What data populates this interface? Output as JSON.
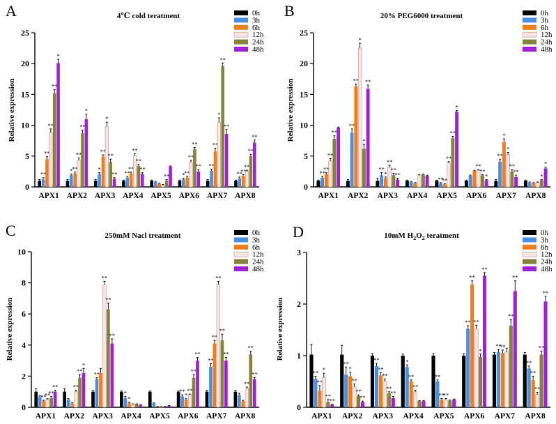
{
  "legend_labels": [
    "0h",
    "3h",
    "6h",
    "12h",
    "24h",
    "48h"
  ],
  "colors": {
    "series": [
      "#000000",
      "#4a90e2",
      "#f07d1a",
      "#fbe3e1",
      "#85823a",
      "#a020d8"
    ],
    "error": "#000000"
  },
  "chart_data": [
    {
      "type": "bar",
      "panel": "A",
      "title": "4℃ cold teratment",
      "ylabel": "Relative expression",
      "ylim": [
        0,
        25
      ],
      "yticks": [
        0,
        5,
        10,
        15,
        20,
        25
      ],
      "categories": [
        "APX1",
        "APX2",
        "APX3",
        "APX4",
        "APX5",
        "APX6",
        "APX7",
        "APX8"
      ],
      "series": [
        {
          "name": "0h",
          "values": [
            1.0,
            1.0,
            1.0,
            1.0,
            1.0,
            1.0,
            1.0,
            1.0
          ],
          "errors": [
            0.2,
            0.2,
            0.2,
            0.1,
            0.1,
            0.1,
            0.2,
            0.1
          ],
          "stars": [
            "",
            "",
            "",
            "",
            "",
            "",
            "",
            ""
          ]
        },
        {
          "name": "3h",
          "values": [
            1.2,
            1.9,
            2.1,
            1.5,
            0.8,
            1.2,
            2.6,
            1.4
          ],
          "errors": [
            0.3,
            0.2,
            0.2,
            0.2,
            0.1,
            0.2,
            0.3,
            0.2
          ],
          "stars": [
            "**",
            "*",
            "*",
            "**",
            "",
            "*",
            "**",
            "**"
          ]
        },
        {
          "name": "6h",
          "values": [
            4.5,
            2.2,
            4.9,
            2.2,
            0.5,
            1.5,
            5.8,
            1.8
          ],
          "errors": [
            0.4,
            0.2,
            0.3,
            0.2,
            0.1,
            0.2,
            0.5,
            0.2
          ],
          "stars": [
            "**",
            "**",
            "**",
            "**",
            "",
            "**",
            "**",
            "**"
          ]
        },
        {
          "name": "12h",
          "values": [
            8.8,
            4.3,
            9.8,
            5.1,
            0.3,
            4.0,
            10.5,
            2.5
          ],
          "errors": [
            0.6,
            0.4,
            0.7,
            0.3,
            0.1,
            0.3,
            0.7,
            0.2
          ],
          "stars": [
            "**",
            "**",
            "*",
            "**",
            "",
            "**",
            "*",
            "**"
          ]
        },
        {
          "name": "24h",
          "values": [
            15.2,
            8.7,
            4.1,
            3.4,
            1.0,
            6.1,
            19.6,
            5.0
          ],
          "errors": [
            0.6,
            0.5,
            0.4,
            0.3,
            0.2,
            0.3,
            0.5,
            0.3
          ],
          "stars": [
            "**",
            "**",
            "**",
            "**",
            "**",
            "**",
            "**",
            "**"
          ]
        },
        {
          "name": "48h",
          "values": [
            20.1,
            11.0,
            1.3,
            2.1,
            3.3,
            2.5,
            8.6,
            7.2
          ],
          "errors": [
            0.6,
            0.8,
            0.2,
            0.2,
            0.1,
            0.3,
            0.7,
            0.4
          ],
          "stars": [
            "*",
            "*",
            "**",
            "**",
            "",
            "**",
            "**",
            "**"
          ]
        }
      ]
    },
    {
      "type": "bar",
      "panel": "B",
      "title": "20% PEG6000 treatment",
      "ylabel": "Relative expression",
      "ylim": [
        0,
        25
      ],
      "yticks": [
        0,
        5,
        10,
        15,
        20,
        25
      ],
      "categories": [
        "APX1",
        "APX2",
        "APX3",
        "APX4",
        "APX5",
        "APX6",
        "APX7",
        "APX8"
      ],
      "series": [
        {
          "name": "0h",
          "values": [
            1.0,
            1.0,
            1.0,
            1.0,
            1.0,
            1.0,
            1.0,
            1.0
          ],
          "errors": [
            0.1,
            0.2,
            0.4,
            0.1,
            0.1,
            0.1,
            0.2,
            0.1
          ],
          "stars": [
            "",
            "",
            "",
            "",
            "",
            "",
            "",
            ""
          ]
        },
        {
          "name": "3h",
          "values": [
            1.5,
            8.8,
            1.9,
            0.8,
            0.6,
            1.8,
            4.1,
            0.7
          ],
          "errors": [
            0.2,
            0.6,
            0.4,
            0.1,
            0.1,
            0.1,
            0.4,
            0.1
          ],
          "stars": [
            "**",
            "**",
            "**",
            "",
            "**",
            "",
            "**",
            ""
          ]
        },
        {
          "name": "6h",
          "values": [
            2.1,
            16.3,
            1.4,
            0.6,
            0.4,
            2.6,
            7.3,
            0.6
          ],
          "errors": [
            0.2,
            0.4,
            0.2,
            0.1,
            0.1,
            0.1,
            0.5,
            0.1
          ],
          "stars": [
            "**",
            "**",
            "*",
            "",
            "**",
            "",
            "*",
            ""
          ]
        },
        {
          "name": "12h",
          "values": [
            4.2,
            22.5,
            3.2,
            1.9,
            3.9,
            2.7,
            5.2,
            0.7
          ],
          "errors": [
            0.4,
            0.8,
            0.3,
            0.1,
            0.2,
            0.1,
            0.4,
            0.1
          ],
          "stars": [
            "**",
            "*",
            "**",
            "",
            "**",
            "**",
            "*",
            ""
          ]
        },
        {
          "name": "24h",
          "values": [
            7.8,
            6.2,
            1.9,
            2.0,
            7.9,
            1.9,
            2.5,
            1.1
          ],
          "errors": [
            0.5,
            0.7,
            0.3,
            0.1,
            0.3,
            0.1,
            0.3,
            0.1
          ],
          "stars": [
            "**",
            "*",
            "**",
            "",
            "**",
            "**",
            "**",
            "*"
          ]
        },
        {
          "name": "48h",
          "values": [
            9.6,
            15.9,
            1.2,
            1.8,
            12.2,
            1.1,
            1.6,
            3.0
          ],
          "errors": [
            0.1,
            0.6,
            0.2,
            0.1,
            0.2,
            0.1,
            0.3,
            0.2
          ],
          "stars": [
            "",
            "**",
            "**",
            "",
            "*",
            "*",
            "**",
            "*"
          ]
        }
      ]
    },
    {
      "type": "bar",
      "panel": "C",
      "title": "250mM Nacl treatment",
      "ylabel": "Relative expression",
      "ylim": [
        0,
        10
      ],
      "yticks": [
        0,
        2,
        4,
        6,
        8,
        10
      ],
      "categories": [
        "APX1",
        "APX2",
        "APX3",
        "APX4",
        "APX5",
        "APX6",
        "APX7",
        "APX8"
      ],
      "series": [
        {
          "name": "0h",
          "values": [
            1.0,
            1.0,
            1.0,
            1.0,
            1.0,
            1.0,
            1.0,
            1.0
          ],
          "errors": [
            0.2,
            0.2,
            0.1,
            0.05,
            0.05,
            0.05,
            0.1,
            0.1
          ],
          "stars": [
            "",
            "",
            "",
            "",
            "",
            "",
            "",
            ""
          ]
        },
        {
          "name": "3h",
          "values": [
            0.7,
            0.5,
            1.8,
            0.6,
            0.25,
            0.7,
            2.6,
            0.8
          ],
          "errors": [
            0.05,
            0.05,
            0.1,
            0.1,
            0.03,
            0.1,
            0.2,
            0.1
          ],
          "stars": [
            "",
            "",
            "**",
            "*",
            "",
            "**",
            "**",
            ""
          ]
        },
        {
          "name": "6h",
          "values": [
            0.4,
            0.25,
            2.2,
            0.3,
            0.05,
            0.5,
            4.1,
            0.4
          ],
          "errors": [
            0.05,
            0.05,
            0.3,
            0.03,
            0.02,
            0.05,
            0.2,
            0.05
          ],
          "stars": [
            "**",
            "",
            "",
            "*",
            "",
            "*",
            "**",
            ""
          ]
        },
        {
          "name": "12h",
          "values": [
            0.5,
            1.0,
            7.9,
            0.2,
            0.03,
            0.8,
            7.9,
            1.2
          ],
          "errors": [
            0.05,
            0.1,
            0.2,
            0.02,
            0.01,
            0.05,
            0.2,
            0.1
          ],
          "stars": [
            "**",
            "**",
            "**",
            "",
            "",
            "**",
            "**",
            "**"
          ]
        },
        {
          "name": "24h",
          "values": [
            0.6,
            1.9,
            6.3,
            0.2,
            0.05,
            1.9,
            4.3,
            3.4
          ],
          "errors": [
            0.1,
            0.2,
            0.4,
            0.02,
            0.01,
            0.2,
            0.4,
            0.2
          ],
          "stars": [
            "**",
            "**",
            "**",
            "",
            "",
            "**",
            "**",
            "**"
          ]
        },
        {
          "name": "48h",
          "values": [
            1.0,
            2.2,
            4.1,
            0.15,
            0.1,
            3.0,
            3.0,
            1.8
          ],
          "errors": [
            0.1,
            0.3,
            0.3,
            0.02,
            0.01,
            0.2,
            0.2,
            0.1
          ],
          "stars": [
            "**",
            "*",
            "**",
            "",
            "",
            "**",
            "**",
            "**"
          ]
        }
      ]
    },
    {
      "type": "bar",
      "panel": "D",
      "title": "10mM H2O2 teratment",
      "ylabel": "Relative expression",
      "ylim": [
        0,
        3
      ],
      "yticks": [
        0,
        1,
        2,
        3
      ],
      "categories": [
        "APX1",
        "APX2",
        "APX3",
        "APX4",
        "APX5",
        "APX6",
        "APX7",
        "APX8"
      ],
      "series": [
        {
          "name": "0h",
          "values": [
            1.02,
            1.02,
            1.0,
            1.0,
            1.0,
            1.0,
            1.02,
            1.02
          ],
          "errors": [
            0.2,
            0.18,
            0.04,
            0.03,
            0.04,
            0.04,
            0.04,
            0.04
          ],
          "stars": [
            "",
            "",
            "",
            "",
            "",
            "",
            "",
            ""
          ]
        },
        {
          "name": "3h",
          "values": [
            0.55,
            0.63,
            0.8,
            0.78,
            0.5,
            1.52,
            1.07,
            0.75
          ],
          "errors": [
            0.05,
            0.15,
            0.05,
            0.04,
            0.03,
            0.06,
            0.05,
            0.05
          ],
          "stars": [
            "**",
            "**",
            "**",
            "*",
            "**",
            "**",
            "**",
            "**"
          ]
        },
        {
          "name": "6h",
          "values": [
            0.32,
            0.6,
            0.62,
            0.5,
            0.15,
            2.38,
            1.05,
            0.53
          ],
          "errors": [
            0.1,
            0.08,
            0.05,
            0.03,
            0.02,
            0.07,
            0.06,
            0.07
          ],
          "stars": [
            "**",
            "*",
            "**",
            "**",
            "**",
            "**",
            "**",
            "**"
          ]
        },
        {
          "name": "12h",
          "values": [
            0.58,
            0.4,
            0.5,
            0.3,
            0.15,
            1.52,
            1.07,
            0.25
          ],
          "errors": [
            0.08,
            0.05,
            0.05,
            0.03,
            0.02,
            0.07,
            0.07,
            0.04
          ],
          "stars": [
            "*",
            "**",
            "**",
            "**",
            "**",
            "**",
            "",
            "**"
          ]
        },
        {
          "name": "24h",
          "values": [
            0.1,
            0.22,
            0.27,
            0.12,
            0.13,
            0.98,
            1.58,
            1.02
          ],
          "errors": [
            0.05,
            0.02,
            0.03,
            0.01,
            0.01,
            0.05,
            0.12,
            0.07
          ],
          "stars": [
            "**",
            "**",
            "**",
            "",
            "",
            "*",
            "**",
            "**"
          ]
        },
        {
          "name": "48h",
          "values": [
            0.05,
            0.1,
            0.18,
            0.12,
            0.15,
            2.55,
            2.25,
            2.05
          ],
          "errors": [
            0.01,
            0.02,
            0.03,
            0.01,
            0.01,
            0.06,
            0.2,
            0.1
          ],
          "stars": [
            "**",
            "**",
            "**",
            "",
            "",
            "**",
            "**",
            "**"
          ]
        }
      ]
    }
  ]
}
